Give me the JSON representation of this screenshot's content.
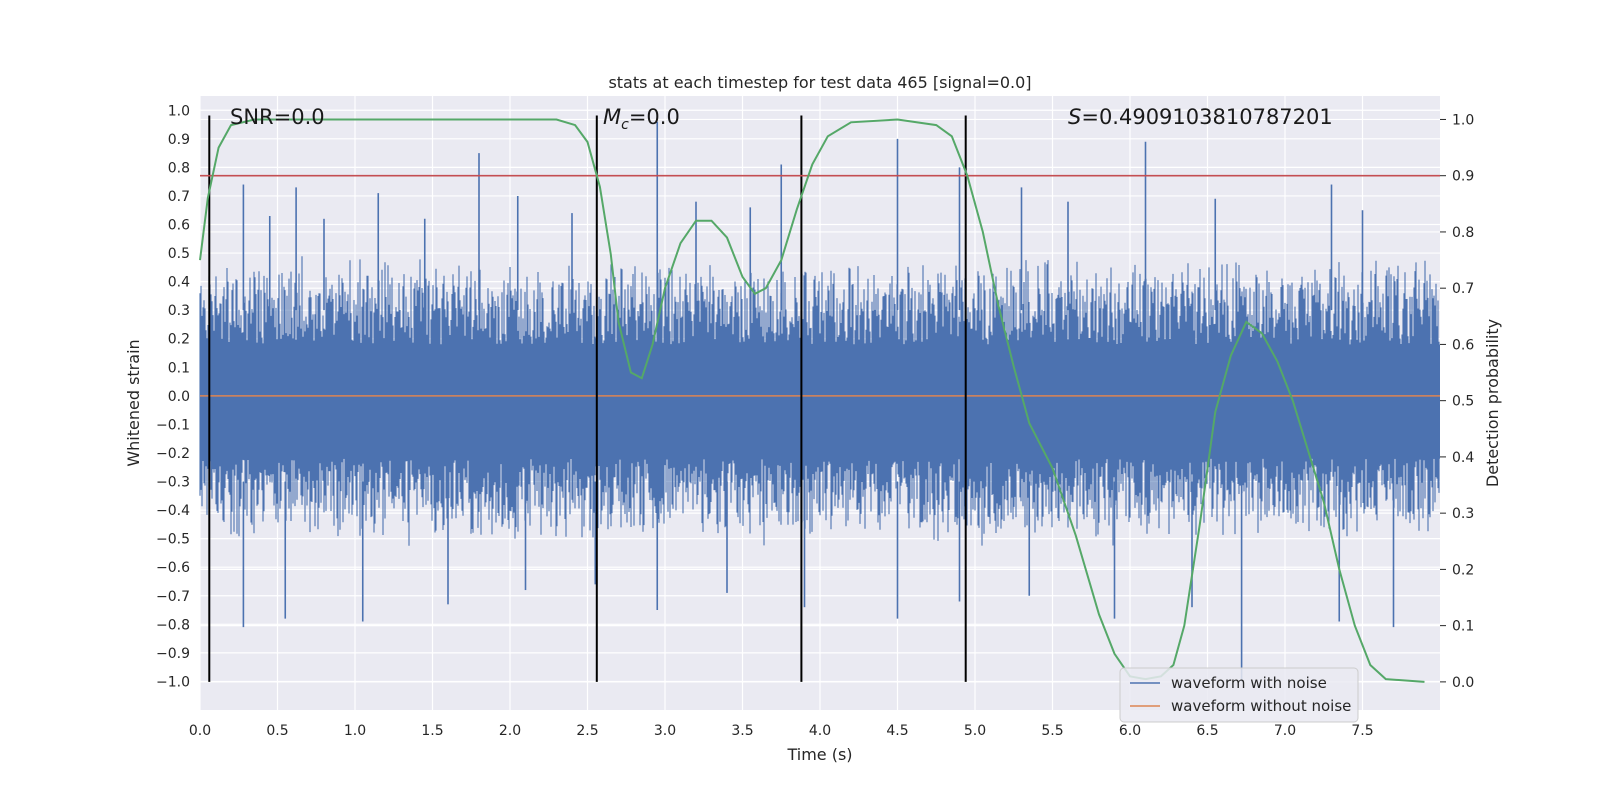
{
  "chart_data": {
    "type": "line",
    "title": "stats at each timestep for test data 465 [signal=0.0]",
    "xlabel": "Time (s)",
    "ylabel": "Whitened strain",
    "y2label": "Detection probability",
    "xlim": [
      0.0,
      8.0
    ],
    "ylim": [
      -1.1,
      1.05
    ],
    "y2lim": [
      -0.05,
      1.0417
    ],
    "xticks": [
      "0.0",
      "0.5",
      "1.0",
      "1.5",
      "2.0",
      "2.5",
      "3.0",
      "3.5",
      "4.0",
      "4.5",
      "5.0",
      "5.5",
      "6.0",
      "6.5",
      "7.0",
      "7.5"
    ],
    "yticks": [
      "1.0",
      "0.9",
      "0.8",
      "0.7",
      "0.6",
      "0.5",
      "0.4",
      "0.3",
      "0.2",
      "0.1",
      "0.0",
      "-0.1",
      "-0.2",
      "-0.3",
      "-0.4",
      "-0.5",
      "-0.6",
      "-0.7",
      "-0.8",
      "-0.9",
      "-1.0"
    ],
    "y2ticks": [
      "1.0",
      "0.9",
      "0.8",
      "0.7",
      "0.6",
      "0.5",
      "0.4",
      "0.3",
      "0.2",
      "0.1",
      "0.0"
    ],
    "annotations": {
      "snr": "SNR=0.0",
      "mc_symbol": "M",
      "mc_sub": "c",
      "mc_value": "=0.0",
      "s_symbol": "S",
      "s_value": "=0.4909103810787201"
    },
    "legend": {
      "position": "lower-right",
      "entries": [
        "waveform with noise",
        "waveform without noise"
      ]
    },
    "threshold": 0.9,
    "vlines": [
      0.06,
      2.56,
      3.88,
      4.94
    ],
    "series": [
      {
        "name": "waveform with noise",
        "color": "#4c72b0",
        "kind": "noise",
        "envelope_upper": 0.37,
        "envelope_lower": -0.41,
        "spikes": [
          [
            0.28,
            0.74
          ],
          [
            0.45,
            0.63
          ],
          [
            0.62,
            0.73
          ],
          [
            0.8,
            0.62
          ],
          [
            1.15,
            0.71
          ],
          [
            1.45,
            0.62
          ],
          [
            1.8,
            0.85
          ],
          [
            2.05,
            0.7
          ],
          [
            2.4,
            0.64
          ],
          [
            2.95,
            0.96
          ],
          [
            3.2,
            0.68
          ],
          [
            3.55,
            0.66
          ],
          [
            3.75,
            0.81
          ],
          [
            4.5,
            0.9
          ],
          [
            4.9,
            0.8
          ],
          [
            5.3,
            0.73
          ],
          [
            5.6,
            0.68
          ],
          [
            6.1,
            0.89
          ],
          [
            6.55,
            0.69
          ],
          [
            7.3,
            0.74
          ],
          [
            7.5,
            0.65
          ],
          [
            0.28,
            -0.81
          ],
          [
            0.55,
            -0.78
          ],
          [
            1.05,
            -0.79
          ],
          [
            1.6,
            -0.73
          ],
          [
            2.1,
            -0.68
          ],
          [
            2.55,
            -0.66
          ],
          [
            2.95,
            -0.75
          ],
          [
            3.4,
            -0.69
          ],
          [
            3.9,
            -0.74
          ],
          [
            4.5,
            -0.78
          ],
          [
            4.9,
            -0.72
          ],
          [
            5.35,
            -0.7
          ],
          [
            5.9,
            -0.78
          ],
          [
            6.4,
            -0.74
          ],
          [
            6.72,
            -1.0
          ],
          [
            7.35,
            -0.79
          ],
          [
            7.7,
            -0.81
          ]
        ]
      },
      {
        "name": "waveform without noise",
        "color": "#dd8452",
        "values": [
          [
            0.0,
            0.0
          ],
          [
            8.0,
            0.0
          ]
        ]
      },
      {
        "name": "detection probability",
        "color": "#55a868",
        "axis": "right",
        "points": [
          [
            0.0,
            0.75
          ],
          [
            0.05,
            0.86
          ],
          [
            0.12,
            0.95
          ],
          [
            0.2,
            0.99
          ],
          [
            0.35,
            1.0
          ],
          [
            1.0,
            1.0
          ],
          [
            2.3,
            1.0
          ],
          [
            2.42,
            0.99
          ],
          [
            2.5,
            0.96
          ],
          [
            2.58,
            0.88
          ],
          [
            2.65,
            0.76
          ],
          [
            2.7,
            0.64
          ],
          [
            2.78,
            0.55
          ],
          [
            2.85,
            0.54
          ],
          [
            2.92,
            0.6
          ],
          [
            3.0,
            0.7
          ],
          [
            3.1,
            0.78
          ],
          [
            3.2,
            0.82
          ],
          [
            3.3,
            0.82
          ],
          [
            3.4,
            0.79
          ],
          [
            3.5,
            0.72
          ],
          [
            3.58,
            0.69
          ],
          [
            3.65,
            0.7
          ],
          [
            3.75,
            0.75
          ],
          [
            3.85,
            0.84
          ],
          [
            3.95,
            0.92
          ],
          [
            4.05,
            0.97
          ],
          [
            4.2,
            0.995
          ],
          [
            4.5,
            1.0
          ],
          [
            4.75,
            0.99
          ],
          [
            4.85,
            0.97
          ],
          [
            4.95,
            0.9
          ],
          [
            5.05,
            0.8
          ],
          [
            5.15,
            0.67
          ],
          [
            5.25,
            0.56
          ],
          [
            5.35,
            0.46
          ],
          [
            5.5,
            0.38
          ],
          [
            5.65,
            0.26
          ],
          [
            5.8,
            0.12
          ],
          [
            5.9,
            0.05
          ],
          [
            6.0,
            0.01
          ],
          [
            6.1,
            0.005
          ],
          [
            6.2,
            0.01
          ],
          [
            6.28,
            0.03
          ],
          [
            6.35,
            0.1
          ],
          [
            6.45,
            0.28
          ],
          [
            6.55,
            0.48
          ],
          [
            6.65,
            0.58
          ],
          [
            6.75,
            0.64
          ],
          [
            6.85,
            0.62
          ],
          [
            6.95,
            0.57
          ],
          [
            7.05,
            0.5
          ],
          [
            7.15,
            0.41
          ],
          [
            7.25,
            0.32
          ],
          [
            7.35,
            0.2
          ],
          [
            7.45,
            0.1
          ],
          [
            7.55,
            0.03
          ],
          [
            7.65,
            0.005
          ],
          [
            7.9,
            0.0
          ]
        ]
      }
    ],
    "threshold_color": "#c44e52"
  }
}
